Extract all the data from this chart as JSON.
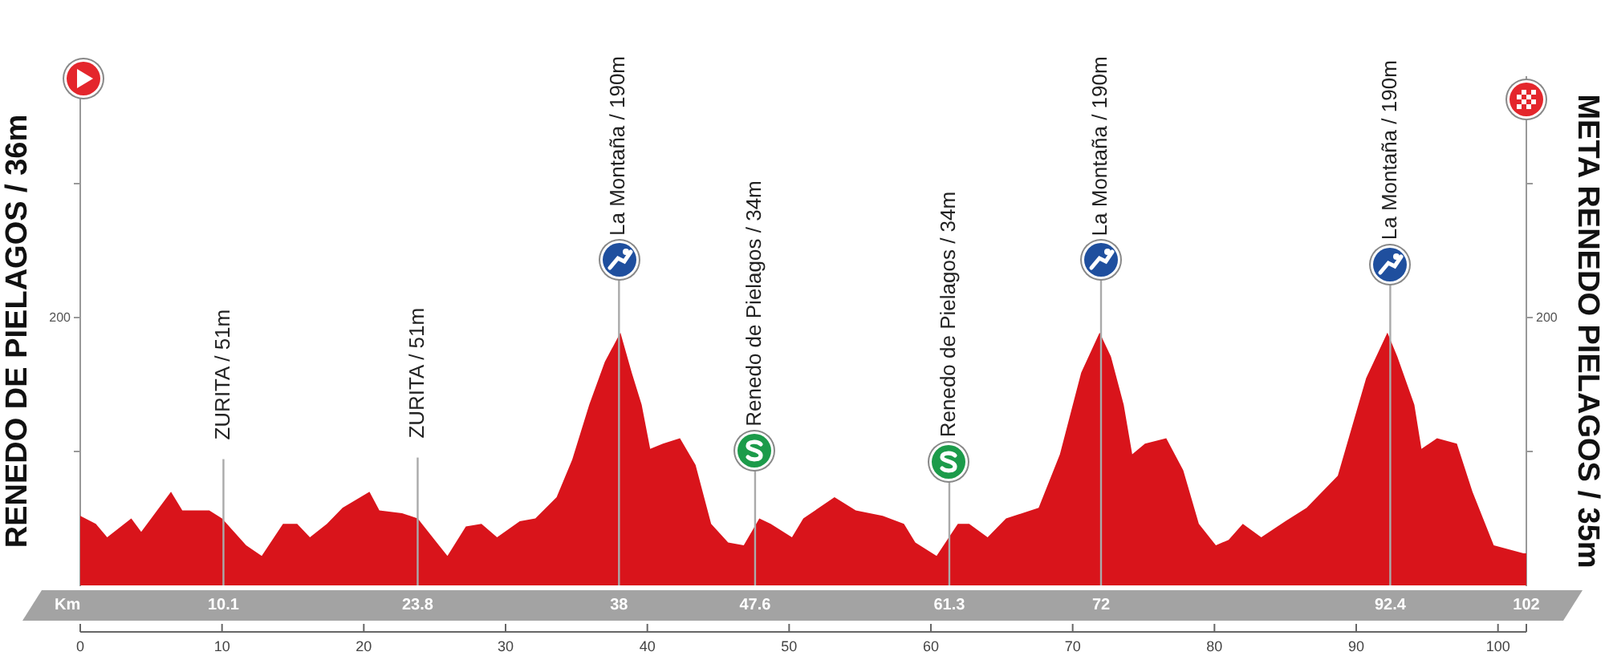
{
  "chart_data": {
    "type": "area",
    "ylabel": "RENEDO DE PIELAGOS / 36m",
    "y2label": "META RENEDO PIELAGOS / 35m",
    "x": [
      0,
      1.1,
      1.9,
      3.6,
      4.3,
      6.4,
      7.2,
      9.1,
      10.0,
      11.7,
      12.8,
      14.3,
      15.3,
      16.2,
      17.4,
      18.5,
      20.4,
      21.1,
      22.7,
      23.8,
      25.3,
      25.9,
      27.2,
      28.3,
      29.4,
      31.0,
      32.1,
      33.6,
      34.7,
      35.9,
      37.0,
      38.1,
      38.9,
      39.6,
      40.2,
      41.1,
      42.3,
      43.4,
      44.5,
      45.7,
      46.8,
      47.9,
      48.7,
      50.2,
      51.0,
      53.2,
      54.7,
      56.6,
      58.1,
      58.9,
      60.4,
      61.9,
      62.7,
      64.0,
      65.3,
      67.6,
      69.1,
      70.6,
      71.9,
      72.7,
      73.6,
      74.2,
      75.1,
      76.6,
      77.8,
      78.9,
      80.1,
      81.0,
      82.0,
      83.3,
      85.0,
      86.5,
      88.7,
      90.7,
      92.2,
      92.9,
      94.1,
      94.6,
      95.7,
      97.1,
      98.2,
      99.7,
      101.8,
      102
    ],
    "series": [
      {
        "color": "#d9141b",
        "values": [
          52,
          46,
          36,
          50,
          40,
          70,
          56,
          56,
          50,
          30,
          22,
          46,
          46,
          36,
          46,
          58,
          70,
          56,
          54,
          50,
          30,
          22,
          44,
          46,
          36,
          48,
          50,
          66,
          94,
          135,
          167,
          189,
          159,
          135,
          102,
          106,
          110,
          90,
          46,
          32,
          30,
          50,
          46,
          36,
          50,
          66,
          56,
          52,
          46,
          32,
          22,
          46,
          46,
          36,
          50,
          58,
          98,
          159,
          189,
          171,
          135,
          98,
          106,
          110,
          86,
          46,
          30,
          34,
          46,
          36,
          48,
          58,
          82,
          155,
          189,
          171,
          135,
          102,
          110,
          106,
          70,
          30,
          24,
          24
        ]
      }
    ],
    "xlim": [
      0,
      102
    ],
    "xticks": [
      0,
      10,
      20,
      30,
      40,
      50,
      60,
      70,
      80,
      90,
      100
    ],
    "ylim": [
      0,
      380
    ],
    "yticks": [
      {
        "value": 100,
        "label": null
      },
      200,
      {
        "value": 300,
        "label": null
      }
    ],
    "x2lim": [
      0,
      102
    ],
    "x2ticks": [
      10.1,
      23.8,
      38,
      47.6,
      61.3,
      72,
      92.4,
      102
    ],
    "x2label": "Km",
    "grid": false,
    "legend": false,
    "marker": "none",
    "ref_lines": [
      {
        "axis": "x",
        "value": 10.1,
        "label": "ZURITA / 51m"
      },
      {
        "axis": "x",
        "value": 23.8,
        "label": "ZURITA / 51m"
      },
      {
        "axis": "x",
        "value": 38,
        "label": "La Montaña / 190m"
      },
      {
        "axis": "x",
        "value": 47.6,
        "label": "Renedo de Pielagos / 34m"
      },
      {
        "axis": "x",
        "value": 61.3,
        "label": "Renedo de Pielagos / 34m"
      },
      {
        "axis": "x",
        "value": 72,
        "label": "La Montaña / 190m"
      },
      {
        "axis": "x",
        "value": 92.4,
        "label": "La Montaña / 190m"
      }
    ],
    "annotations": [
      "200"
    ]
  }
}
